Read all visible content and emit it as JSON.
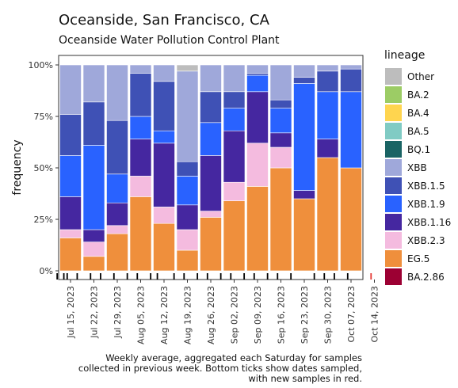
{
  "title": "Oceanside, San Francisco, CA",
  "subtitle": "Oceanside Water Pollution Control Plant",
  "caption_lines": [
    "Weekly average, aggregated each Saturday for samples",
    "collected in previous week. Bottom ticks show dates sampled,",
    "with new samples in red."
  ],
  "legend": {
    "title": "lineage",
    "items": [
      {
        "name": "Other",
        "color": "#bdbdbd"
      },
      {
        "name": "BA.2",
        "color": "#9ccc65"
      },
      {
        "name": "BA.4",
        "color": "#ffd54f"
      },
      {
        "name": "BA.5",
        "color": "#80cbc4"
      },
      {
        "name": "BQ.1",
        "color": "#1a6464"
      },
      {
        "name": "XBB",
        "color": "#9fa8da"
      },
      {
        "name": "XBB.1.5",
        "color": "#3f51b5"
      },
      {
        "name": "XBB.1.9",
        "color": "#2962ff"
      },
      {
        "name": "XBB.1.16",
        "color": "#4527a0"
      },
      {
        "name": "XBB.2.3",
        "color": "#f4bbdf"
      },
      {
        "name": "EG.5",
        "color": "#ef8f3c"
      },
      {
        "name": "BA.2.86",
        "color": "#9c0033"
      }
    ]
  },
  "chart_data": {
    "type": "bar",
    "stacked": true,
    "title": "Oceanside, San Francisco, CA",
    "subtitle": "Oceanside Water Pollution Control Plant",
    "xlabel": "",
    "ylabel": "frequency",
    "ylim": [
      0,
      100
    ],
    "y_ticks": [
      "0%",
      "25%",
      "50%",
      "75%",
      "100%"
    ],
    "x_tick_labels": [
      "Jul 15, 2023",
      "Jul 22, 2023",
      "Jul 29, 2023",
      "Aug 05, 2023",
      "Aug 12, 2023",
      "Aug 19, 2023",
      "Aug 26, 2023",
      "Sep 02, 2023",
      "Sep 09, 2023",
      "Sep 16, 2023",
      "Sep 23, 2023",
      "Sep 30, 2023",
      "Oct 07, 2023",
      "Oct 14, 2023"
    ],
    "categories": [
      "Jul 15, 2023",
      "Jul 22, 2023",
      "Jul 29, 2023",
      "Aug 05, 2023",
      "Aug 12, 2023",
      "Aug 19, 2023",
      "Aug 26, 2023",
      "Sep 02, 2023",
      "Sep 09, 2023",
      "Sep 16, 2023",
      "Sep 23, 2023",
      "Sep 30, 2023",
      "Oct 07, 2023",
      "Oct 14, 2023"
    ],
    "series": [
      {
        "name": "EG.5",
        "values": [
          16,
          7,
          18,
          36,
          23,
          10,
          26,
          34,
          41,
          50,
          35,
          55,
          50,
          0
        ]
      },
      {
        "name": "XBB.2.3",
        "values": [
          4,
          7,
          4,
          10,
          8,
          10,
          3,
          9,
          21,
          10,
          0,
          0,
          0,
          0
        ]
      },
      {
        "name": "XBB.1.16",
        "values": [
          16,
          6,
          11,
          18,
          31,
          12,
          27,
          25,
          25,
          7,
          4,
          9,
          0,
          0
        ]
      },
      {
        "name": "XBB.1.9",
        "values": [
          20,
          41,
          14,
          11,
          6,
          14,
          16,
          11,
          8,
          12,
          52,
          23,
          37,
          0
        ]
      },
      {
        "name": "XBB.1.5",
        "values": [
          20,
          21,
          26,
          21,
          24,
          7,
          15,
          8,
          1,
          4,
          3,
          10,
          11,
          0
        ]
      },
      {
        "name": "XBB",
        "values": [
          24,
          18,
          27,
          4,
          8,
          44,
          13,
          13,
          4,
          17,
          6,
          3,
          2,
          0
        ]
      },
      {
        "name": "Other",
        "values": [
          0,
          0,
          0,
          0,
          0,
          3,
          0,
          0,
          0,
          0,
          0,
          0,
          0,
          0
        ]
      }
    ],
    "sample_dates": [
      "Jul 11, 2023",
      "Jul 13, 2023",
      "Jul 14, 2023",
      "Jul 17, 2023",
      "Jul 21, 2023",
      "Jul 24, 2023",
      "Jul 28, 2023",
      "Aug 01, 2023",
      "Aug 04, 2023",
      "Aug 08, 2023",
      "Aug 10, 2023",
      "Aug 15, 2023",
      "Aug 18, 2023",
      "Aug 22, 2023",
      "Aug 25, 2023",
      "Aug 29, 2023",
      "Sep 01, 2023",
      "Sep 05, 2023",
      "Sep 08, 2023",
      "Sep 12, 2023",
      "Sep 15, 2023",
      "Sep 19, 2023",
      "Sep 26, 2023",
      "Sep 29, 2023",
      "Oct 02, 2023",
      "Oct 06, 2023",
      "Oct 13, 2023"
    ],
    "new_sample_dates": [
      "Oct 13, 2023"
    ],
    "new_sample_color": "#e53935",
    "grid": true,
    "legend_position": "right"
  }
}
